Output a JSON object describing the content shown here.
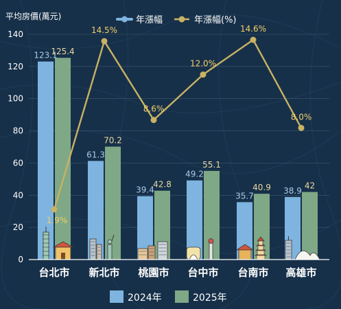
{
  "chart_data": {
    "type": "bar",
    "ylabel": "平均房價(萬元)",
    "ylim": [
      0,
      140
    ],
    "yticks": [
      0,
      20,
      40,
      60,
      80,
      100,
      120,
      140
    ],
    "categories": [
      "台北市",
      "新北市",
      "桃園市",
      "台中市",
      "台南市",
      "高雄市"
    ],
    "series": [
      {
        "name": "2024年",
        "values": [
          123.1,
          61.3,
          39.4,
          49.2,
          35.7,
          38.9
        ],
        "labels": [
          "123.1",
          "61.3",
          "39.4",
          "49.2",
          "35.7",
          "38.9"
        ],
        "color": "#7eb4df"
      },
      {
        "name": "2025年",
        "values": [
          125.4,
          70.2,
          42.8,
          55.1,
          40.9,
          42
        ],
        "labels": [
          "125.4",
          "70.2",
          "42.8",
          "55.1",
          "40.9",
          "42"
        ],
        "color": "#7fa886"
      }
    ],
    "line_series": {
      "name": "年漲幅(%)",
      "values": [
        1.9,
        14.5,
        8.6,
        12.0,
        14.6,
        8.0
      ],
      "labels": [
        "1.9%",
        "14.5%",
        "8.6%",
        "12.0%",
        "14.6%",
        "8.0%"
      ],
      "color": "#c8b264"
    },
    "top_legend": [
      "年漲幅",
      "年漲幅(%)"
    ],
    "bottom_legend": [
      "2024年",
      "2025年"
    ],
    "grid": true
  },
  "landmark_icons": [
    "taipei-101-icon",
    "liberty-statue-icon",
    "temple-icon",
    "tower-icon",
    "pagoda-icon",
    "opera-house-icon"
  ]
}
